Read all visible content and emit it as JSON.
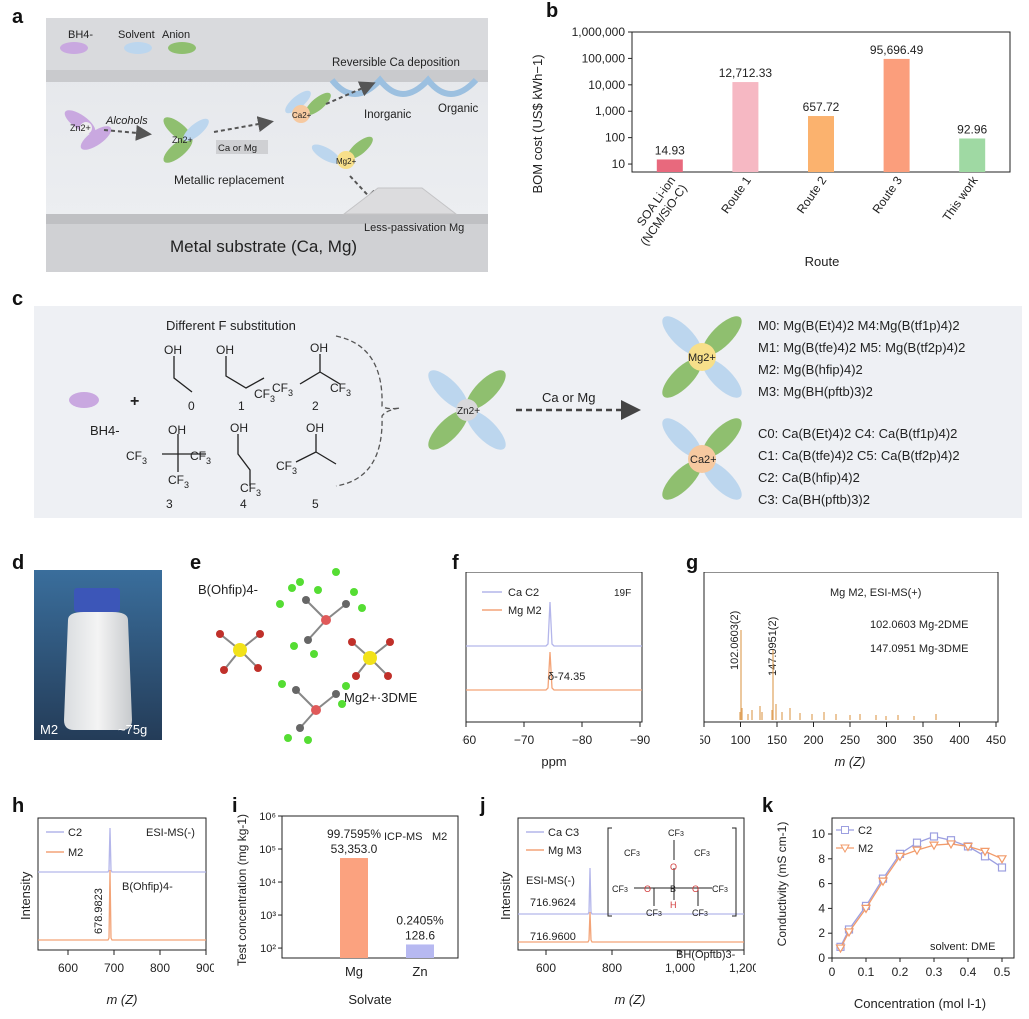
{
  "panels": {
    "a": "a",
    "b": "b",
    "c": "c",
    "d": "d",
    "e": "e",
    "f": "f",
    "g": "g",
    "h": "h",
    "i": "i",
    "j": "j",
    "k": "k"
  },
  "panel_a": {
    "legend": [
      "BH4-",
      "Solvent",
      "Anion"
    ],
    "zn_label": "Zn2+",
    "alcohols": "Alcohols",
    "ca_or_mg": "Ca or Mg",
    "ca_label": "Ca2+",
    "mg_label": "Mg2+",
    "reversible": "Reversible Ca deposition",
    "inorganic": "Inorganic",
    "organic": "Organic",
    "metallic_replacement": "Metallic replacement",
    "less_passivation": "Less-passivation Mg",
    "substrate": "Metal substrate (Ca, Mg)",
    "colors": {
      "bh4": "#c9a8e0",
      "solvent": "#bcd6ee",
      "anion": "#8fbf6f",
      "ca": "#f6c9a0",
      "mg": "#f7df8a"
    }
  },
  "panel_c": {
    "title": "Different F substitution",
    "bh4": "BH4-",
    "plus": "+",
    "alcohol_numbers": [
      "0",
      "1",
      "2",
      "3",
      "4",
      "5"
    ],
    "arrow_label": "Ca or Mg",
    "zn_label": "Zn2+",
    "mg_label": "Mg2+",
    "ca_label": "Ca2+",
    "mg_compounds": [
      "M0: Mg(B(Et)4)2 M4:Mg(B(tf1p)4)2",
      "M1: Mg(B(tfe)4)2 M5: Mg(B(tf2p)4)2",
      "M2: Mg(B(hfip)4)2",
      "M3: Mg(BH(pftb)3)2"
    ],
    "ca_compounds": [
      "C0: Ca(B(Et)4)2 C4: Ca(B(tf1p)4)2",
      "C1: Ca(B(tfe)4)2 C5: Ca(B(tf2p)4)2",
      "C2: Ca(B(hfip)4)2",
      "C3: Ca(BH(pftb)3)2"
    ]
  },
  "panel_d": {
    "sample": "M2",
    "mass": "~75g"
  },
  "panel_e": {
    "anion": "B(Ohfip)4-",
    "cation": "Mg2+·3DME"
  },
  "panel_f": {
    "series": [
      "Ca C2",
      "Mg M2"
    ],
    "nucleus": "19F",
    "peak_label": "δ-74.35",
    "xlabel": "ppm",
    "ticks": [
      "−60",
      "−70",
      "−80",
      "−90"
    ]
  },
  "panel_g": {
    "title": "Mg M2, ESI-MS(+)",
    "peak1": "102.0603(2)",
    "peak2": "147.0951(2)",
    "note1": "102.0603 Mg-2DME",
    "note2": "147.0951 Mg-3DME",
    "xlabel": "m (Z)",
    "ticks": [
      "50",
      "100",
      "150",
      "200",
      "250",
      "300",
      "350",
      "400",
      "450"
    ]
  },
  "panel_h": {
    "series": [
      "C2",
      "M2"
    ],
    "mode": "ESI-MS(-)",
    "peak": "678.9823",
    "species": "B(Ohfip)4-",
    "ylabel": "Intensity",
    "xlabel": "m (Z)",
    "ticks": [
      "600",
      "700",
      "800",
      "900"
    ]
  },
  "panel_i": {
    "method": "ICP-MS",
    "sample": "M2",
    "ylabel": "Test concentration (mg kg-1)",
    "xlabel": "Solvate",
    "yticks": [
      "10²",
      "10³",
      "10⁴",
      "10⁵",
      "10⁶"
    ]
  },
  "panel_j": {
    "series": [
      "Ca C3",
      "Mg M3"
    ],
    "mode": "ESI-MS(-)",
    "peak1": "716.9624",
    "peak2": "716.9600",
    "species": "BH(Opftb)3-",
    "ylabel": "Intensity",
    "xlabel": "m (Z)",
    "ticks": [
      "600",
      "800",
      "1,000",
      "1,200"
    ]
  },
  "panel_k": {
    "ylabel": "Conductivity (mS cm-1)",
    "xlabel": "Concentration (mol l-1)",
    "note": "solvent: DME"
  },
  "chart_data": [
    {
      "id": "b",
      "type": "bar",
      "yscale": "log",
      "categories": [
        "SOA Li-ion (NCM/SiO-C)",
        "Route 1",
        "Route 2",
        "Route 3",
        "This work"
      ],
      "values": [
        14.93,
        12712.33,
        657.72,
        95696.49,
        92.96
      ],
      "value_labels": [
        "14.93",
        "12,712.33",
        "657.72",
        "95,696.49",
        "92.96"
      ],
      "colors": [
        "#e8697d",
        "#f6b8c3",
        "#fbb26e",
        "#fb9e7c",
        "#9fd9a3"
      ],
      "xlabel": "Route",
      "ylabel": "BOM cost (US$ kWh−1)",
      "ylim": [
        5,
        1000000
      ],
      "yticks": [
        10,
        100,
        1000,
        10000,
        100000,
        1000000
      ],
      "ytick_labels": [
        "10",
        "100",
        "1,000",
        "10,000",
        "100,000",
        "1,000,000"
      ]
    },
    {
      "id": "i",
      "type": "bar",
      "yscale": "log",
      "categories": [
        "Mg",
        "Zn"
      ],
      "values": [
        53353.0,
        128.6
      ],
      "value_labels": [
        "99.7595%\n53,353.0",
        "0.2405%\n128.6"
      ],
      "colors": [
        "#fba27f",
        "#b7b9f1"
      ],
      "ylim": [
        50,
        1000000
      ]
    },
    {
      "id": "k",
      "type": "line",
      "ylim": [
        0,
        10
      ],
      "xlim": [
        0,
        0.5
      ],
      "xticks": [
        0,
        0.1,
        0.2,
        0.3,
        0.4,
        0.5
      ],
      "yticks": [
        0,
        2,
        4,
        6,
        8,
        10
      ],
      "series": [
        {
          "name": "C2",
          "color": "#9c9fe0",
          "marker": "square",
          "x": [
            0.025,
            0.05,
            0.1,
            0.15,
            0.2,
            0.25,
            0.3,
            0.35,
            0.4,
            0.45,
            0.5
          ],
          "y": [
            0.9,
            2.3,
            4.2,
            6.4,
            8.4,
            9.3,
            9.8,
            9.5,
            9.0,
            8.2,
            7.3
          ]
        },
        {
          "name": "M2",
          "color": "#f29b6a",
          "marker": "triangle",
          "x": [
            0.025,
            0.05,
            0.1,
            0.15,
            0.2,
            0.25,
            0.3,
            0.35,
            0.4,
            0.45,
            0.5
          ],
          "y": [
            0.8,
            2.1,
            4.0,
            6.2,
            8.2,
            8.7,
            9.1,
            9.2,
            9.0,
            8.6,
            8.0
          ]
        }
      ]
    }
  ]
}
